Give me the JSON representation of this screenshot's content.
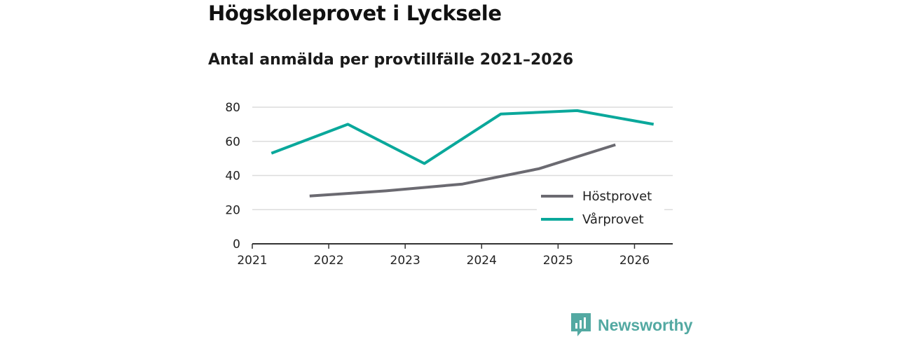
{
  "chart_data": {
    "type": "line",
    "title": "Högskoleprovet i Lycksele",
    "subtitle": "Antal anmälda per provtillfälle 2021–2026",
    "xlabel": "",
    "ylabel": "",
    "xlim": [
      2021,
      2026.5
    ],
    "ylim": [
      0,
      80
    ],
    "yticks": [
      0,
      20,
      40,
      60,
      80
    ],
    "xticks": [
      2021,
      2022,
      2023,
      2024,
      2025,
      2026
    ],
    "grid": true,
    "legend_position": "inside-bottom-right",
    "series": [
      {
        "name": "Höstprovet",
        "color": "#6b6a71",
        "x": [
          2021.75,
          2022.75,
          2023.75,
          2024.75,
          2025.75
        ],
        "values": [
          28,
          31,
          35,
          44,
          58
        ]
      },
      {
        "name": "Vårprovet",
        "color": "#0aa89b",
        "x": [
          2021.25,
          2022.25,
          2023.25,
          2024.25,
          2025.25,
          2026.25
        ],
        "values": [
          53,
          70,
          47,
          76,
          78,
          70
        ]
      }
    ]
  },
  "brand": {
    "name": "Newsworthy",
    "color": "#53a9a2"
  }
}
